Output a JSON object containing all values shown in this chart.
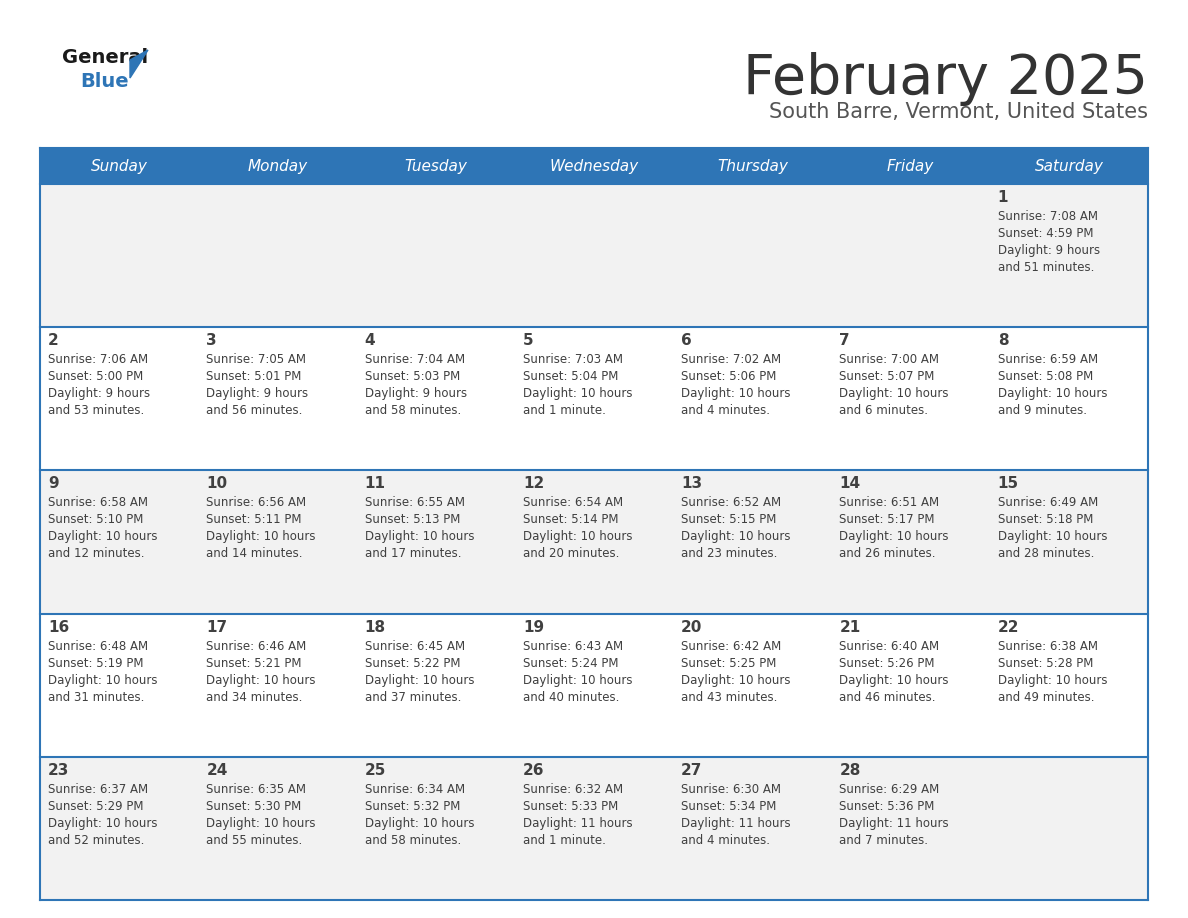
{
  "title": "February 2025",
  "subtitle": "South Barre, Vermont, United States",
  "days_of_week": [
    "Sunday",
    "Monday",
    "Tuesday",
    "Wednesday",
    "Thursday",
    "Friday",
    "Saturday"
  ],
  "header_bg": "#2E75B6",
  "header_text": "#FFFFFF",
  "cell_bg_odd": "#F2F2F2",
  "cell_bg_even": "#FFFFFF",
  "text_color": "#404040",
  "line_color": "#2E75B6",
  "title_color": "#333333",
  "subtitle_color": "#555555",
  "calendar": [
    [
      null,
      null,
      null,
      null,
      null,
      null,
      {
        "day": "1",
        "sunrise": "7:08 AM",
        "sunset": "4:59 PM",
        "daylight": "9 hours\nand 51 minutes."
      }
    ],
    [
      {
        "day": "2",
        "sunrise": "7:06 AM",
        "sunset": "5:00 PM",
        "daylight": "9 hours\nand 53 minutes."
      },
      {
        "day": "3",
        "sunrise": "7:05 AM",
        "sunset": "5:01 PM",
        "daylight": "9 hours\nand 56 minutes."
      },
      {
        "day": "4",
        "sunrise": "7:04 AM",
        "sunset": "5:03 PM",
        "daylight": "9 hours\nand 58 minutes."
      },
      {
        "day": "5",
        "sunrise": "7:03 AM",
        "sunset": "5:04 PM",
        "daylight": "10 hours\nand 1 minute."
      },
      {
        "day": "6",
        "sunrise": "7:02 AM",
        "sunset": "5:06 PM",
        "daylight": "10 hours\nand 4 minutes."
      },
      {
        "day": "7",
        "sunrise": "7:00 AM",
        "sunset": "5:07 PM",
        "daylight": "10 hours\nand 6 minutes."
      },
      {
        "day": "8",
        "sunrise": "6:59 AM",
        "sunset": "5:08 PM",
        "daylight": "10 hours\nand 9 minutes."
      }
    ],
    [
      {
        "day": "9",
        "sunrise": "6:58 AM",
        "sunset": "5:10 PM",
        "daylight": "10 hours\nand 12 minutes."
      },
      {
        "day": "10",
        "sunrise": "6:56 AM",
        "sunset": "5:11 PM",
        "daylight": "10 hours\nand 14 minutes."
      },
      {
        "day": "11",
        "sunrise": "6:55 AM",
        "sunset": "5:13 PM",
        "daylight": "10 hours\nand 17 minutes."
      },
      {
        "day": "12",
        "sunrise": "6:54 AM",
        "sunset": "5:14 PM",
        "daylight": "10 hours\nand 20 minutes."
      },
      {
        "day": "13",
        "sunrise": "6:52 AM",
        "sunset": "5:15 PM",
        "daylight": "10 hours\nand 23 minutes."
      },
      {
        "day": "14",
        "sunrise": "6:51 AM",
        "sunset": "5:17 PM",
        "daylight": "10 hours\nand 26 minutes."
      },
      {
        "day": "15",
        "sunrise": "6:49 AM",
        "sunset": "5:18 PM",
        "daylight": "10 hours\nand 28 minutes."
      }
    ],
    [
      {
        "day": "16",
        "sunrise": "6:48 AM",
        "sunset": "5:19 PM",
        "daylight": "10 hours\nand 31 minutes."
      },
      {
        "day": "17",
        "sunrise": "6:46 AM",
        "sunset": "5:21 PM",
        "daylight": "10 hours\nand 34 minutes."
      },
      {
        "day": "18",
        "sunrise": "6:45 AM",
        "sunset": "5:22 PM",
        "daylight": "10 hours\nand 37 minutes."
      },
      {
        "day": "19",
        "sunrise": "6:43 AM",
        "sunset": "5:24 PM",
        "daylight": "10 hours\nand 40 minutes."
      },
      {
        "day": "20",
        "sunrise": "6:42 AM",
        "sunset": "5:25 PM",
        "daylight": "10 hours\nand 43 minutes."
      },
      {
        "day": "21",
        "sunrise": "6:40 AM",
        "sunset": "5:26 PM",
        "daylight": "10 hours\nand 46 minutes."
      },
      {
        "day": "22",
        "sunrise": "6:38 AM",
        "sunset": "5:28 PM",
        "daylight": "10 hours\nand 49 minutes."
      }
    ],
    [
      {
        "day": "23",
        "sunrise": "6:37 AM",
        "sunset": "5:29 PM",
        "daylight": "10 hours\nand 52 minutes."
      },
      {
        "day": "24",
        "sunrise": "6:35 AM",
        "sunset": "5:30 PM",
        "daylight": "10 hours\nand 55 minutes."
      },
      {
        "day": "25",
        "sunrise": "6:34 AM",
        "sunset": "5:32 PM",
        "daylight": "10 hours\nand 58 minutes."
      },
      {
        "day": "26",
        "sunrise": "6:32 AM",
        "sunset": "5:33 PM",
        "daylight": "11 hours\nand 1 minute."
      },
      {
        "day": "27",
        "sunrise": "6:30 AM",
        "sunset": "5:34 PM",
        "daylight": "11 hours\nand 4 minutes."
      },
      {
        "day": "28",
        "sunrise": "6:29 AM",
        "sunset": "5:36 PM",
        "daylight": "11 hours\nand 7 minutes."
      },
      null
    ]
  ]
}
